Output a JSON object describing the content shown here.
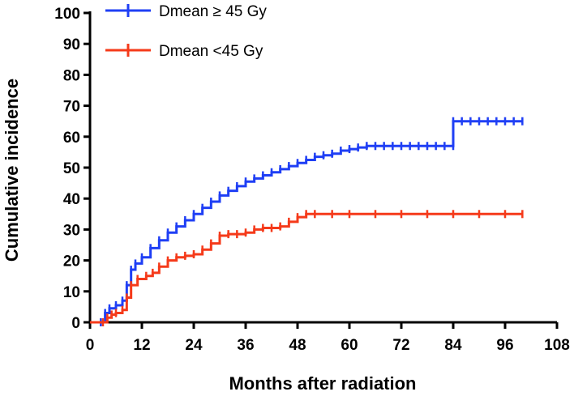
{
  "chart_data": {
    "type": "line",
    "title": "",
    "xlabel": "Months after radiation",
    "ylabel": "Cumulative incidence",
    "xlim": [
      0,
      108
    ],
    "ylim": [
      0,
      100
    ],
    "xticks": [
      0,
      12,
      24,
      36,
      48,
      60,
      72,
      84,
      96,
      108
    ],
    "yticks": [
      0,
      10,
      20,
      30,
      40,
      50,
      60,
      70,
      80,
      90,
      100
    ],
    "legend_position": "top",
    "series": [
      {
        "name": "Dmean ≥ 45 Gy",
        "color": "#1f3ff5",
        "x": [
          0,
          2.5,
          3.5,
          4.5,
          6,
          7.5,
          8.5,
          9.5,
          10.5,
          12,
          14,
          16,
          18,
          20,
          22,
          24,
          26,
          28,
          30,
          32,
          34,
          36,
          38,
          40,
          42,
          44,
          46,
          48,
          50,
          52,
          54,
          56,
          58,
          60,
          62,
          64,
          66,
          68,
          70,
          72,
          74,
          76,
          78,
          80,
          82,
          84,
          84,
          86,
          88,
          90,
          92,
          94,
          96,
          98,
          100
        ],
        "y": [
          0,
          0,
          3,
          4.5,
          5.5,
          7,
          12,
          17,
          19,
          21,
          24,
          26.5,
          29,
          31,
          33,
          35,
          37,
          39,
          41,
          42.5,
          44,
          45.5,
          46.5,
          47.5,
          48.5,
          49.5,
          50.5,
          51.5,
          52.5,
          53.5,
          54,
          54.5,
          55.5,
          56,
          56.5,
          57,
          57,
          57,
          57,
          57,
          57,
          57,
          57,
          57,
          57,
          57,
          65,
          65,
          65,
          65,
          65,
          65,
          65,
          65,
          65
        ]
      },
      {
        "name": "Dmean <45 Gy",
        "color": "#f53a1a",
        "x": [
          0,
          3,
          4,
          5,
          6,
          7.5,
          8.5,
          9.5,
          11,
          13,
          14.5,
          16,
          18,
          20,
          22,
          24,
          26,
          28,
          30,
          32,
          34,
          36,
          38,
          40,
          42,
          44,
          46,
          48,
          50,
          52,
          56,
          60,
          66,
          72,
          78,
          84,
          90,
          96,
          100
        ],
        "y": [
          0,
          0,
          1.5,
          2.5,
          3,
          4,
          8,
          12,
          14,
          15,
          16,
          18,
          20,
          21,
          21.5,
          22,
          23.5,
          25.5,
          28,
          28.5,
          28.5,
          29,
          30,
          30.5,
          30.5,
          31,
          32.5,
          34,
          35,
          35,
          35,
          35,
          35,
          35,
          35,
          35,
          35,
          35,
          35
        ]
      }
    ]
  }
}
